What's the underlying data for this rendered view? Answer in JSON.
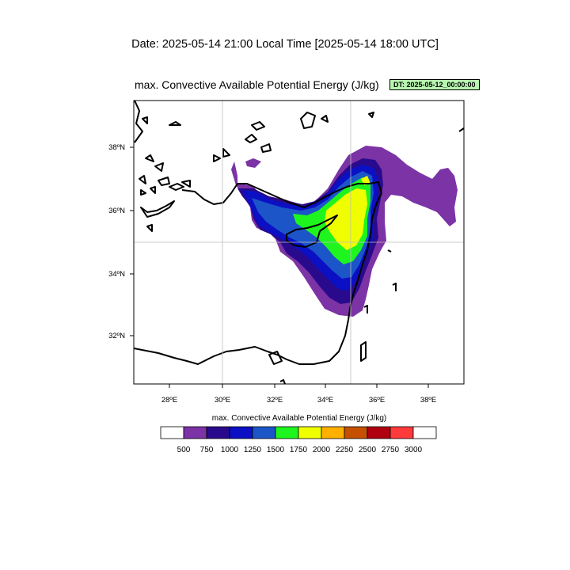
{
  "header": {
    "date_title": "Date: 2025-05-14  21:00 Local Time [2025-05-14  18:00 UTC]",
    "field_title": "max. Convective Available Potential Energy   (J/kg)",
    "dt_badge": "DT: 2025-05-12_00:00:00"
  },
  "axes": {
    "lon_ticks": [
      "28ºE",
      "30ºE",
      "32ºE",
      "34ºE",
      "36ºE",
      "38ºE"
    ],
    "lat_ticks": [
      "38ºN",
      "36ºN",
      "34ºN",
      "32ºN"
    ]
  },
  "colorbar": {
    "title": "max. Convective Available Potential Energy  (J/kg)",
    "labels": [
      "500",
      "750",
      "1000",
      "1250",
      "1500",
      "1750",
      "2000",
      "2250",
      "2500",
      "2750",
      "3000"
    ],
    "colors": [
      "#ffffff",
      "#7b33a6",
      "#2a0a8c",
      "#0b10c4",
      "#1b55c8",
      "#1ef51e",
      "#f0ff00",
      "#ffb000",
      "#c45000",
      "#b00010",
      "#ff3a3a",
      "#ffffff"
    ]
  }
}
